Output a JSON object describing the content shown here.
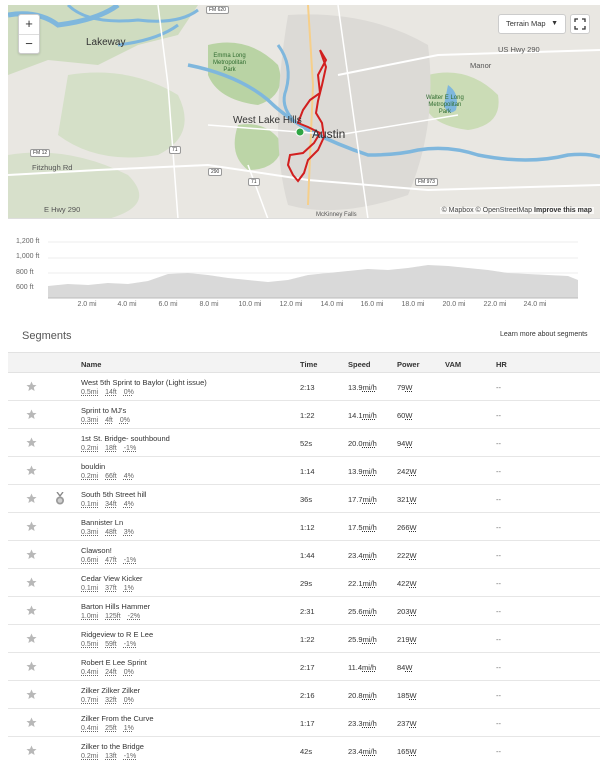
{
  "map": {
    "zoom_in": "+",
    "zoom_out": "−",
    "layer_button": "Terrain Map",
    "attribution_mapbox": "© Mapbox",
    "attribution_osm": "© OpenStreetMap",
    "attribution_improve": "Improve this map",
    "labels": {
      "lakeway": "Lakeway",
      "westlake": "West Lake Hills",
      "austin": "Austin",
      "manor": "Manor",
      "fitzhugh": "Fitzhugh Rd",
      "ehwy290": "E Hwy 290",
      "ushwy290": "US Hwy 290",
      "emma_park": "Emma Long\nMetropolitan\nPark",
      "walter_park": "Walter E Long\nMetropolitan\nPark",
      "mckinney": "McKinney Falls"
    }
  },
  "elevation": {
    "y_ticks": [
      "1,200 ft",
      "1,000 ft",
      "800 ft",
      "600 ft"
    ],
    "x_ticks": [
      "2.0 mi",
      "4.0 mi",
      "6.0 mi",
      "8.0 mi",
      "10.0 mi",
      "12.0 mi",
      "14.0 mi",
      "16.0 mi",
      "18.0 mi",
      "20.0 mi",
      "22.0 mi",
      "24.0 mi"
    ]
  },
  "segments": {
    "title": "Segments",
    "learn_more": "Learn more about segments",
    "columns": {
      "name": "Name",
      "time": "Time",
      "speed": "Speed",
      "power": "Power",
      "vam": "VAM",
      "hr": "HR"
    },
    "rows": [
      {
        "name": "West 5th Sprint to Baylor (Light issue)",
        "dist": "0.5mi",
        "elev": "14ft",
        "grade": "0%",
        "time": "2:13",
        "speed": "13.9",
        "power": "79",
        "hr": "--",
        "medal": false
      },
      {
        "name": "Sprint to MJ's",
        "dist": "0.3mi",
        "elev": "4ft",
        "grade": "0%",
        "time": "1:22",
        "speed": "14.1",
        "power": "60",
        "hr": "--",
        "medal": false
      },
      {
        "name": "1st St. Bridge- southbound",
        "dist": "0.2mi",
        "elev": "18ft",
        "grade": "-1%",
        "time": "52s",
        "speed": "20.0",
        "power": "94",
        "hr": "--",
        "medal": false
      },
      {
        "name": "bouldin",
        "dist": "0.2mi",
        "elev": "66ft",
        "grade": "4%",
        "time": "1:14",
        "speed": "13.9",
        "power": "242",
        "hr": "--",
        "medal": false
      },
      {
        "name": "South 5th Street hill",
        "dist": "0.1mi",
        "elev": "34ft",
        "grade": "4%",
        "time": "36s",
        "speed": "17.7",
        "power": "321",
        "hr": "--",
        "medal": true
      },
      {
        "name": "Bannister Ln",
        "dist": "0.3mi",
        "elev": "48ft",
        "grade": "3%",
        "time": "1:12",
        "speed": "17.5",
        "power": "266",
        "hr": "--",
        "medal": false
      },
      {
        "name": "Clawson!",
        "dist": "0.6mi",
        "elev": "47ft",
        "grade": "-1%",
        "time": "1:44",
        "speed": "23.4",
        "power": "222",
        "hr": "--",
        "medal": false
      },
      {
        "name": "Cedar View Kicker",
        "dist": "0.1mi",
        "elev": "37ft",
        "grade": "1%",
        "time": "29s",
        "speed": "22.1",
        "power": "422",
        "hr": "--",
        "medal": false
      },
      {
        "name": "Barton Hills Hammer",
        "dist": "1.0mi",
        "elev": "125ft",
        "grade": "-2%",
        "time": "2:31",
        "speed": "25.6",
        "power": "203",
        "hr": "--",
        "medal": false
      },
      {
        "name": "Ridgeview to R E Lee",
        "dist": "0.5mi",
        "elev": "59ft",
        "grade": "-1%",
        "time": "1:22",
        "speed": "25.9",
        "power": "219",
        "hr": "--",
        "medal": false
      },
      {
        "name": "Robert E Lee Sprint",
        "dist": "0.4mi",
        "elev": "24ft",
        "grade": "0%",
        "time": "2:17",
        "speed": "11.4",
        "power": "84",
        "hr": "--",
        "medal": false
      },
      {
        "name": "Zilker Zilker Zilker",
        "dist": "0.7mi",
        "elev": "32ft",
        "grade": "0%",
        "time": "2:16",
        "speed": "20.8",
        "power": "185",
        "hr": "--",
        "medal": false
      },
      {
        "name": "Zilker From the Curve",
        "dist": "0.4mi",
        "elev": "25ft",
        "grade": "1%",
        "time": "1:17",
        "speed": "23.3",
        "power": "237",
        "hr": "--",
        "medal": false
      },
      {
        "name": "Zilker to the Bridge",
        "dist": "0.2mi",
        "elev": "13ft",
        "grade": "-1%",
        "time": "42s",
        "speed": "23.4",
        "power": "165",
        "hr": "--",
        "medal": false
      }
    ],
    "speed_unit": "mi/h",
    "power_unit": "W"
  }
}
